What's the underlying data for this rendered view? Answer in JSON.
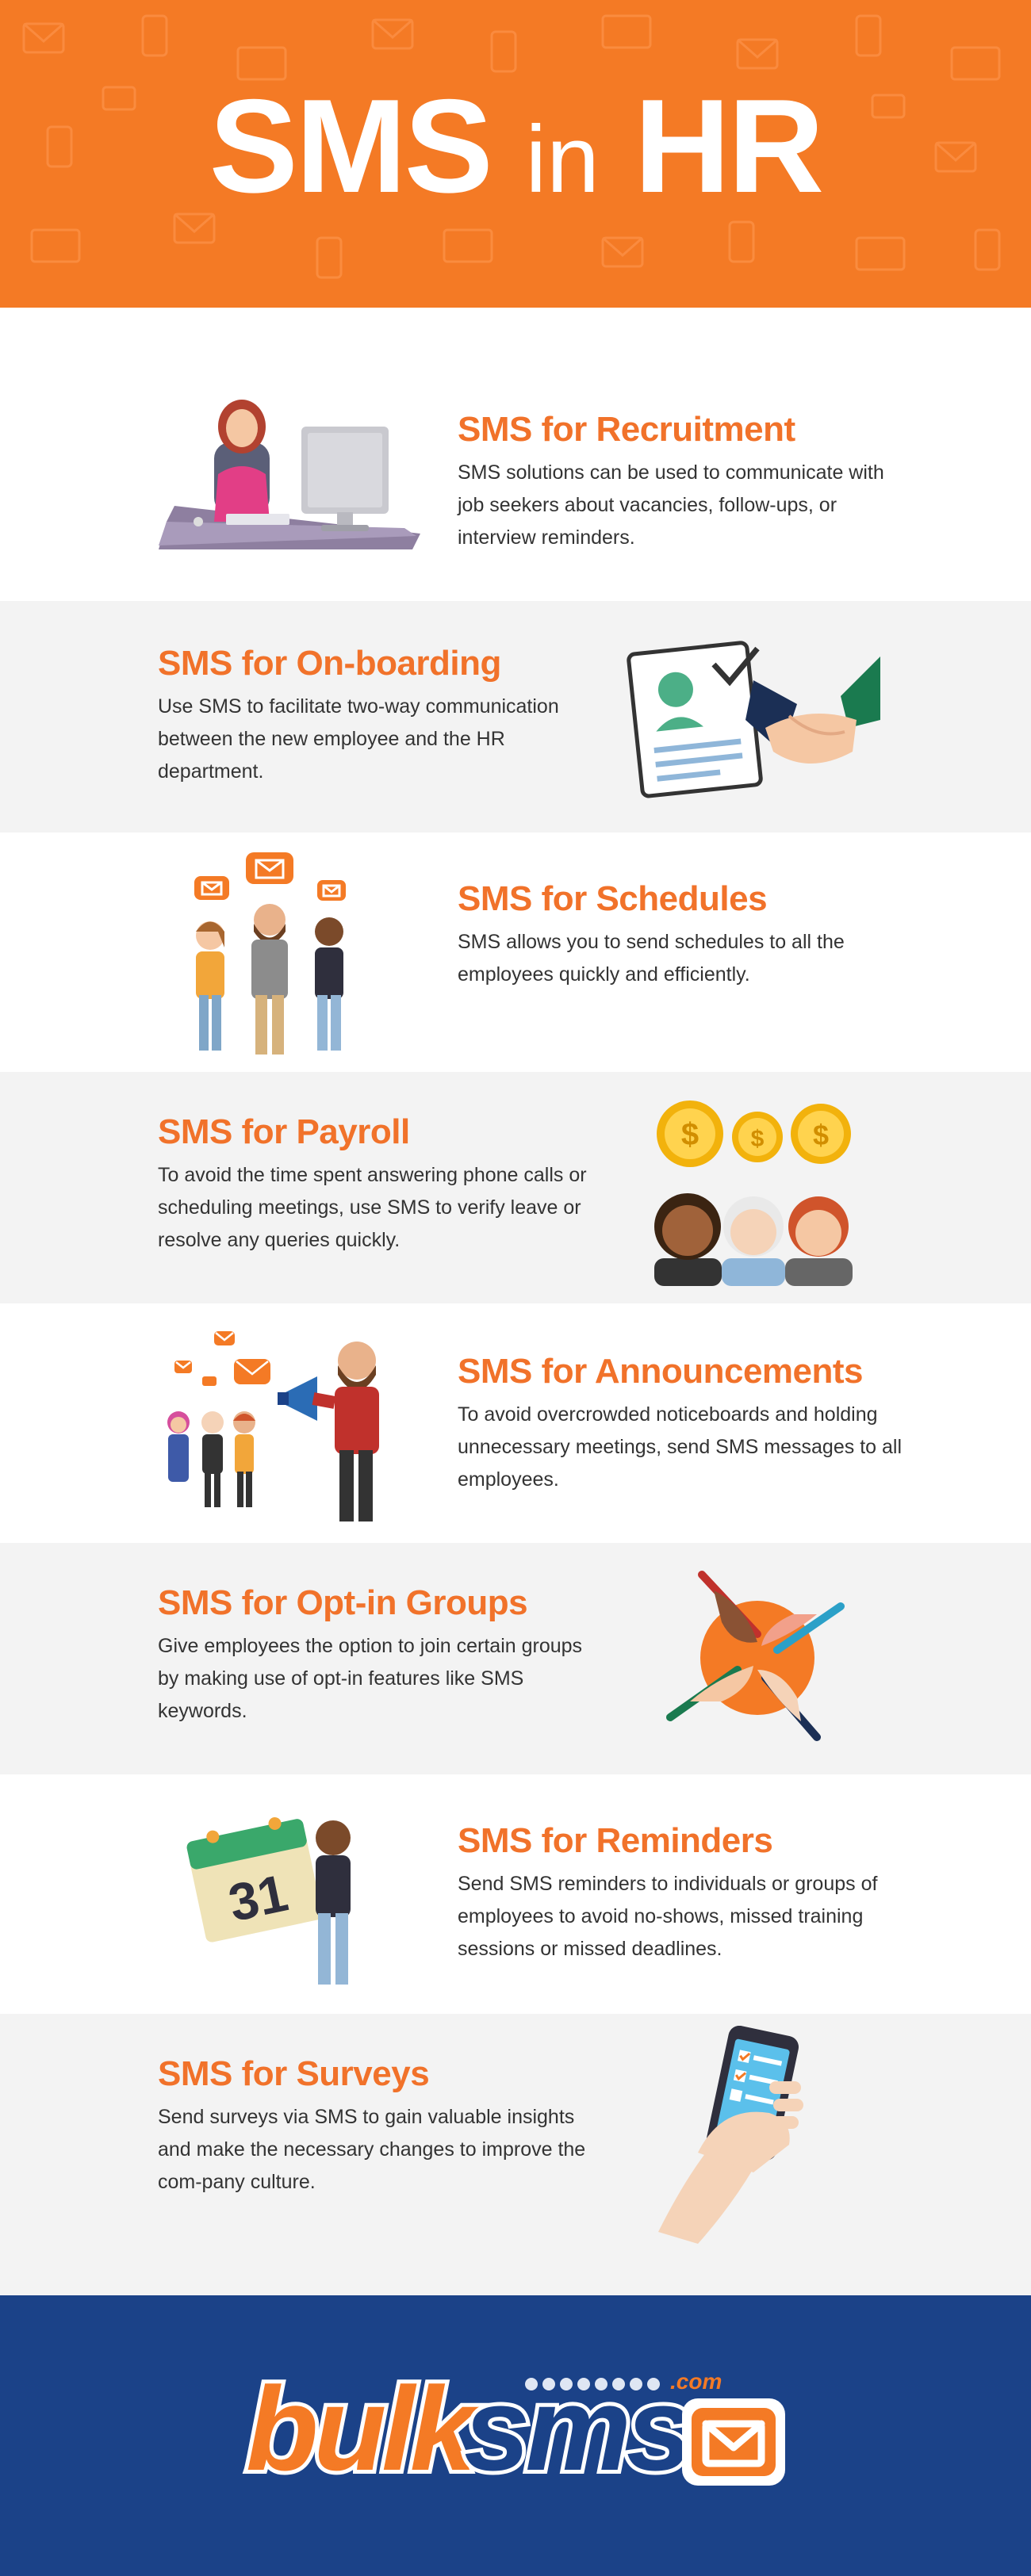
{
  "header": {
    "title_sms": "SMS",
    "title_in": "in",
    "title_hr": "HR",
    "background": "#f47a25"
  },
  "colors": {
    "accent": "#f1722a",
    "grey_band": "#f3f3f3",
    "footer": "#1b4288"
  },
  "sections": [
    {
      "title": "SMS for Recruitment",
      "desc": "SMS solutions can be used to communicate with job seekers about vacancies, follow-ups, or interview reminders.",
      "icon": "office-worker-at-desk-icon"
    },
    {
      "title": "SMS for On-boarding",
      "desc": "Use SMS to facilitate two-way communication between the new employee and the HR department.",
      "icon": "contract-handshake-icon"
    },
    {
      "title": "SMS for Schedules",
      "desc": "SMS allows you to send schedules to all the employees quickly and efficiently.",
      "icon": "employees-receiving-messages-icon"
    },
    {
      "title": "SMS for Payroll",
      "desc": "To avoid the time spent answering phone calls or scheduling meetings, use SMS to verify leave or resolve any queries quickly.",
      "icon": "coins-and-employees-icon"
    },
    {
      "title": "SMS for Announcements",
      "desc": "To avoid overcrowded noticeboards and holding unnecessary meetings, send SMS messages to all employees.",
      "icon": "megaphone-announcement-icon"
    },
    {
      "title": "SMS for Opt-in Groups",
      "desc": "Give employees the option to join certain groups by making use of opt-in features like SMS keywords.",
      "icon": "joined-hands-icon"
    },
    {
      "title": "SMS for Reminders",
      "desc": "Send SMS reminders to individuals or groups of employees to avoid no-shows, missed training sessions or missed deadlines.",
      "icon": "calendar-reminder-icon",
      "calendar_day": "31"
    },
    {
      "title": "SMS for Surveys",
      "desc": "Send surveys via SMS to gain valuable insights and make the necessary changes to improve the com-pany culture.",
      "icon": "phone-survey-icon"
    }
  ],
  "footer": {
    "logo_bulk": "bulk",
    "logo_sms": "sms",
    "logo_com": ".com",
    "logo_icon": "envelope-icon"
  }
}
